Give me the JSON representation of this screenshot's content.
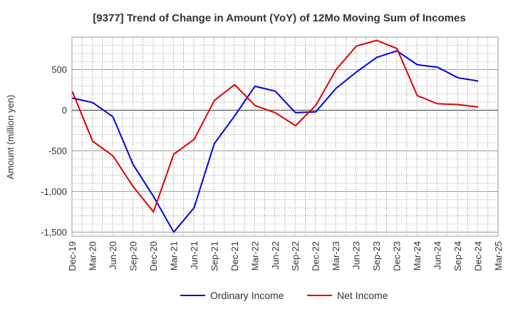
{
  "chart_data": {
    "type": "line",
    "title": "[9377]  Trend of Change in Amount (YoY) of 12Mo Moving Sum of Incomes",
    "ylabel": "Amount (million yen)",
    "xlabel": "",
    "ylim": [
      -1550,
      900
    ],
    "yticks": [
      500,
      0,
      -500,
      -1000,
      -1500
    ],
    "ytick_labels": [
      "500",
      "0",
      "-500",
      "-1,000",
      "-1,500"
    ],
    "categories": [
      "Dec-19",
      "Mar-20",
      "Jun-20",
      "Sep-20",
      "Dec-20",
      "Mar-21",
      "Jun-21",
      "Sep-21",
      "Dec-21",
      "Mar-22",
      "Jun-22",
      "Sep-22",
      "Dec-22",
      "Mar-23",
      "Jun-23",
      "Sep-23",
      "Dec-23",
      "Mar-24",
      "Jun-24",
      "Sep-24",
      "Dec-24",
      "Mar-25"
    ],
    "grid": true,
    "legend_position": "bottom",
    "series": [
      {
        "name": "Ordinary Income",
        "color": "#0000dd",
        "values": [
          150,
          95,
          -80,
          -670,
          -1060,
          -1500,
          -1200,
          -410,
          -70,
          295,
          235,
          -30,
          -20,
          270,
          470,
          650,
          730,
          560,
          530,
          400,
          360,
          null
        ]
      },
      {
        "name": "Net Income",
        "color": "#dd0000",
        "values": [
          230,
          -380,
          -560,
          -940,
          -1250,
          -540,
          -360,
          120,
          315,
          60,
          -30,
          -190,
          60,
          500,
          790,
          860,
          760,
          180,
          80,
          70,
          40,
          null
        ]
      }
    ]
  }
}
